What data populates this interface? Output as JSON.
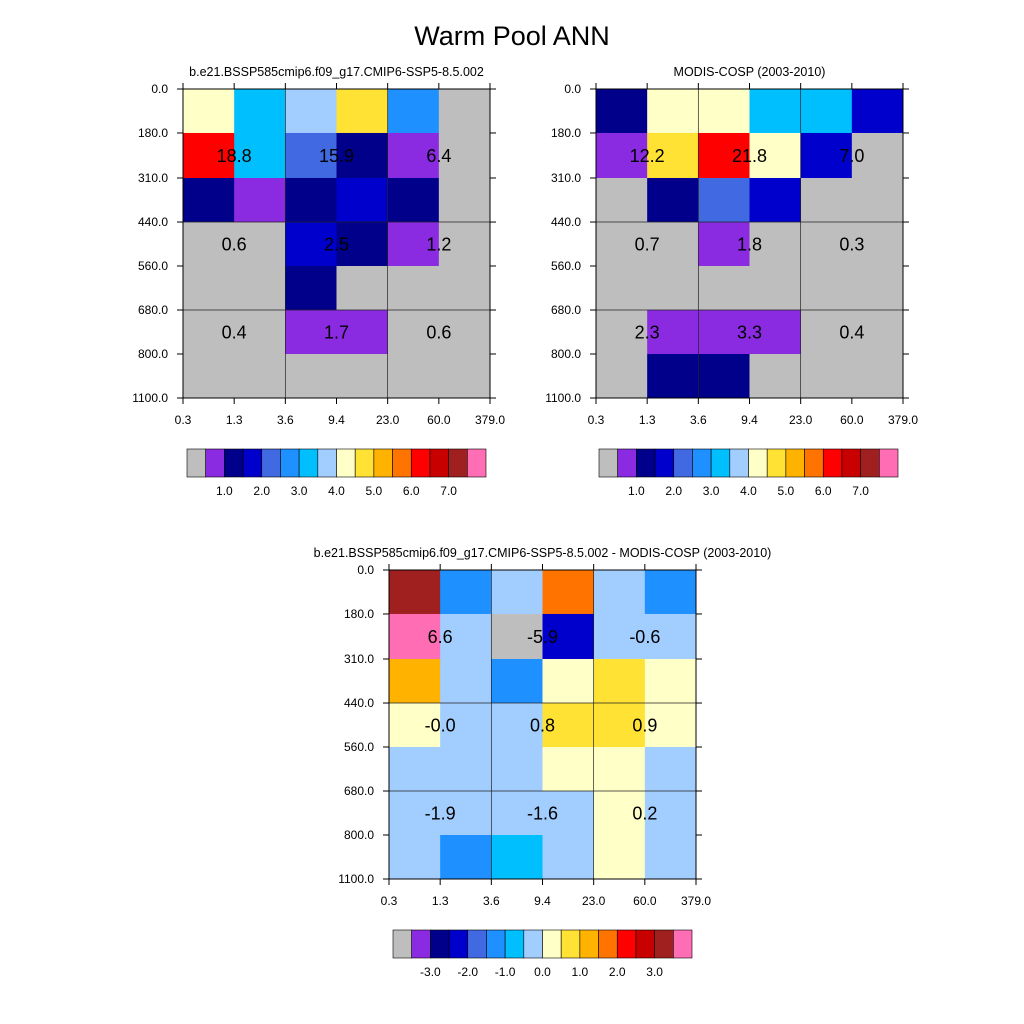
{
  "page_title": "Warm Pool ANN",
  "colors": {
    "missing": "#bebebe",
    "seq_palette": [
      "#bebebe",
      "#8a2be2",
      "#00008b",
      "#0000cd",
      "#4169e1",
      "#1e90ff",
      "#00bfff",
      "#a2cdff",
      "#ffffc8",
      "#ffe234",
      "#ffb300",
      "#ff7300",
      "#ff0000",
      "#c80000",
      "#a0201f",
      "#ff6eb4"
    ],
    "diff_palette": [
      "#bebebe",
      "#8a2be2",
      "#00008b",
      "#0000cd",
      "#4169e1",
      "#1e90ff",
      "#00bfff",
      "#a2cdff",
      "#ffffc8",
      "#ffe234",
      "#ffb300",
      "#ff7300",
      "#ff0000",
      "#c80000",
      "#a0201f",
      "#ff6eb4"
    ]
  },
  "chart_data": [
    {
      "type": "heatmap",
      "title": "b.e21.BSSP585cmip6.f09_g17.CMIP6-SSP5-8.5.002",
      "x_ticks": [
        "0.3",
        "1.3",
        "3.6",
        "9.4",
        "23.0",
        "60.0",
        "379.0"
      ],
      "y_ticks": [
        "0.0",
        "180.0",
        "310.0",
        "440.0",
        "560.0",
        "680.0",
        "800.0",
        "1100.0"
      ],
      "cells": [
        [
          8,
          6,
          7,
          9,
          5,
          0
        ],
        [
          12,
          6,
          4,
          2,
          1,
          0
        ],
        [
          2,
          1,
          2,
          3,
          2,
          0
        ],
        [
          0,
          0,
          3,
          2,
          1,
          0
        ],
        [
          0,
          0,
          2,
          0,
          0,
          0
        ],
        [
          0,
          0,
          1,
          1,
          0,
          0
        ],
        [
          0,
          0,
          0,
          0,
          0,
          0
        ]
      ],
      "block_values": [
        [
          "18.8",
          "15.9",
          "6.4"
        ],
        [
          "0.6",
          "2.5",
          "1.2"
        ],
        [
          "0.4",
          "1.7",
          "0.6"
        ]
      ],
      "colorbar_labels": [
        "1.0",
        "2.0",
        "3.0",
        "4.0",
        "5.0",
        "6.0",
        "7.0"
      ]
    },
    {
      "type": "heatmap",
      "title": "MODIS-COSP (2003-2010)",
      "x_ticks": [
        "0.3",
        "1.3",
        "3.6",
        "9.4",
        "23.0",
        "60.0",
        "379.0"
      ],
      "y_ticks": [
        "0.0",
        "180.0",
        "310.0",
        "440.0",
        "560.0",
        "680.0",
        "800.0",
        "1100.0"
      ],
      "cells": [
        [
          2,
          8,
          8,
          6,
          6,
          3
        ],
        [
          1,
          9,
          12,
          8,
          3,
          0
        ],
        [
          0,
          2,
          4,
          3,
          0,
          0
        ],
        [
          0,
          0,
          1,
          0,
          0,
          0
        ],
        [
          0,
          0,
          0,
          0,
          0,
          0
        ],
        [
          0,
          1,
          1,
          1,
          0,
          0
        ],
        [
          0,
          2,
          2,
          0,
          0,
          0
        ]
      ],
      "block_values": [
        [
          "12.2",
          "21.8",
          "7.0"
        ],
        [
          "0.7",
          "1.8",
          "0.3"
        ],
        [
          "2.3",
          "3.3",
          "0.4"
        ]
      ],
      "colorbar_labels": [
        "1.0",
        "2.0",
        "3.0",
        "4.0",
        "5.0",
        "6.0",
        "7.0"
      ]
    },
    {
      "type": "heatmap",
      "title": "b.e21.BSSP585cmip6.f09_g17.CMIP6-SSP5-8.5.002 - MODIS-COSP (2003-2010)",
      "x_ticks": [
        "0.3",
        "1.3",
        "3.6",
        "9.4",
        "23.0",
        "60.0",
        "379.0"
      ],
      "y_ticks": [
        "0.0",
        "180.0",
        "310.0",
        "440.0",
        "560.0",
        "680.0",
        "800.0",
        "1100.0"
      ],
      "cells": [
        [
          14,
          5,
          7,
          11,
          7,
          5
        ],
        [
          15,
          7,
          0,
          3,
          7,
          7
        ],
        [
          10,
          7,
          5,
          8,
          9,
          8
        ],
        [
          8,
          7,
          7,
          9,
          9,
          8
        ],
        [
          7,
          7,
          7,
          8,
          8,
          7
        ],
        [
          7,
          7,
          7,
          7,
          8,
          7
        ],
        [
          7,
          5,
          6,
          7,
          8,
          7
        ]
      ],
      "block_values": [
        [
          "6.6",
          "-5.9",
          "-0.6"
        ],
        [
          "-0.0",
          "0.8",
          "0.9"
        ],
        [
          "-1.9",
          "-1.6",
          "0.2"
        ]
      ],
      "colorbar_labels": [
        "-3.0",
        "-2.0",
        "-1.0",
        "0.0",
        "1.0",
        "2.0",
        "3.0"
      ]
    }
  ]
}
